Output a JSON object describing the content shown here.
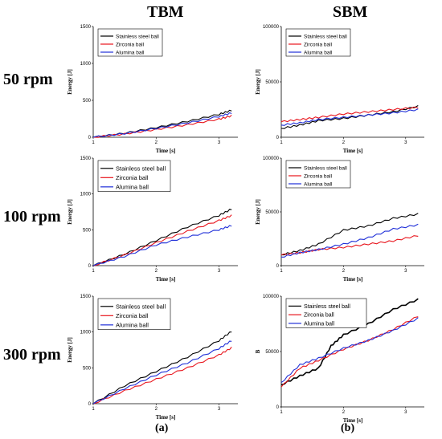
{
  "column_titles": [
    "TBM",
    "SBM"
  ],
  "row_titles": [
    "50 rpm",
    "100 rpm",
    "300 rpm"
  ],
  "captions": [
    "(a)",
    "(b)"
  ],
  "colors": {
    "stainless": "#000000",
    "zirconia": "#e8141c",
    "alumina": "#1f2fd8"
  },
  "chart_data": [
    {
      "type": "line",
      "panel": "TBM 50 rpm",
      "xlabel": "Time [s]",
      "ylabel": "Energy [J]",
      "xlim": [
        1,
        3.3
      ],
      "ylim": [
        0,
        1500
      ],
      "xticks": [
        1,
        2,
        3
      ],
      "yticks": [
        0,
        500,
        1000,
        1500
      ],
      "legend": "top-left",
      "series": [
        {
          "name": "Stainless steel ball",
          "x": [
            1,
            1.5,
            2,
            2.5,
            3,
            3.2
          ],
          "y": [
            0,
            55,
            130,
            215,
            310,
            365
          ]
        },
        {
          "name": "Zirconia ball",
          "x": [
            1,
            1.5,
            2,
            2.5,
            3,
            3.2
          ],
          "y": [
            0,
            45,
            105,
            170,
            245,
            290
          ]
        },
        {
          "name": "Alumina ball",
          "x": [
            1,
            1.5,
            2,
            2.5,
            3,
            3.2
          ],
          "y": [
            0,
            50,
            120,
            195,
            280,
            330
          ]
        }
      ]
    },
    {
      "type": "line",
      "panel": "SBM 50 rpm",
      "xlabel": "Time [s]",
      "ylabel": "Energy [J]",
      "xlim": [
        1,
        3.3
      ],
      "ylim": [
        0,
        100000
      ],
      "xticks": [
        1,
        2,
        3
      ],
      "yticks": [
        0,
        50000,
        100000
      ],
      "legend": "top-left",
      "series": [
        {
          "name": "Stainless steel ball",
          "x": [
            1,
            1.3,
            1.6,
            2,
            2.4,
            2.8,
            3.2
          ],
          "y": [
            8000,
            11000,
            15000,
            17000,
            20000,
            23000,
            28000
          ]
        },
        {
          "name": "Zirconia ball",
          "x": [
            1,
            1.3,
            1.6,
            2,
            2.4,
            2.8,
            3.2
          ],
          "y": [
            14000,
            16000,
            18000,
            21000,
            23000,
            25000,
            27000
          ]
        },
        {
          "name": "Alumina ball",
          "x": [
            1,
            1.3,
            1.6,
            2,
            2.4,
            2.8,
            3.2
          ],
          "y": [
            11000,
            13000,
            16000,
            18000,
            20000,
            22000,
            25000
          ]
        }
      ]
    },
    {
      "type": "line",
      "panel": "TBM 100 rpm",
      "xlabel": "Time [s]",
      "ylabel": "Energy [J]",
      "xlim": [
        1,
        3.3
      ],
      "ylim": [
        0,
        1500
      ],
      "xticks": [
        1,
        2,
        3
      ],
      "yticks": [
        0,
        500,
        1000,
        1500
      ],
      "legend": "top-left",
      "series": [
        {
          "name": "Stainless steel ball",
          "x": [
            1,
            1.5,
            2,
            2.5,
            3,
            3.2
          ],
          "y": [
            0,
            160,
            350,
            540,
            700,
            790
          ]
        },
        {
          "name": "Zirconia ball",
          "x": [
            1,
            1.5,
            2,
            2.5,
            3,
            3.2
          ],
          "y": [
            0,
            150,
            320,
            480,
            630,
            700
          ]
        },
        {
          "name": "Alumina ball",
          "x": [
            1,
            1.5,
            2,
            2.5,
            3,
            3.2
          ],
          "y": [
            0,
            130,
            290,
            400,
            500,
            560
          ]
        }
      ]
    },
    {
      "type": "line",
      "panel": "SBM 100 rpm",
      "xlabel": "Time [s]",
      "ylabel": "Energy [J]",
      "xlim": [
        1,
        3.3
      ],
      "ylim": [
        0,
        100000
      ],
      "xticks": [
        1,
        2,
        3
      ],
      "yticks": [
        0,
        50000,
        100000
      ],
      "legend": "top-left",
      "series": [
        {
          "name": "Stainless steel ball",
          "x": [
            1,
            1.3,
            1.6,
            2,
            2.4,
            2.8,
            3.2
          ],
          "y": [
            10000,
            14000,
            20000,
            33000,
            37000,
            44000,
            48000
          ]
        },
        {
          "name": "Zirconia ball",
          "x": [
            1,
            1.3,
            1.6,
            2,
            2.4,
            2.8,
            3.2
          ],
          "y": [
            10000,
            12000,
            15000,
            17000,
            20000,
            23000,
            28000
          ]
        },
        {
          "name": "Alumina ball",
          "x": [
            1,
            1.3,
            1.6,
            2,
            2.4,
            2.8,
            3.2
          ],
          "y": [
            8000,
            12000,
            15000,
            20000,
            26000,
            34000,
            38000
          ]
        }
      ]
    },
    {
      "type": "line",
      "panel": "TBM 300 rpm",
      "xlabel": "Time [s]",
      "ylabel": "Energy [J]",
      "xlim": [
        1,
        3.3
      ],
      "ylim": [
        0,
        1500
      ],
      "xticks": [
        1,
        2,
        3
      ],
      "yticks": [
        0,
        500,
        1000,
        1500
      ],
      "legend": "top-left",
      "series": [
        {
          "name": "Stainless steel ball",
          "x": [
            1,
            1.5,
            2,
            2.5,
            3,
            3.2
          ],
          "y": [
            0,
            250,
            450,
            650,
            880,
            1010
          ]
        },
        {
          "name": "Zirconia ball",
          "x": [
            1,
            1.5,
            2,
            2.5,
            3,
            3.2
          ],
          "y": [
            0,
            180,
            340,
            500,
            680,
            780
          ]
        },
        {
          "name": "Alumina ball",
          "x": [
            1,
            1.5,
            2,
            2.5,
            3,
            3.2
          ],
          "y": [
            0,
            210,
            400,
            570,
            770,
            880
          ]
        }
      ]
    },
    {
      "type": "line",
      "panel": "SBM 300 rpm",
      "xlabel": "Time [s]",
      "ylabel": "B",
      "xlim": [
        1,
        3.3
      ],
      "ylim": [
        0,
        100000
      ],
      "xticks": [
        1,
        2,
        3
      ],
      "yticks": [
        0,
        50000,
        100000
      ],
      "legend": "top-left",
      "series": [
        {
          "name": "Stainless steel ball",
          "x": [
            1,
            1.3,
            1.6,
            1.8,
            2,
            2.4,
            2.8,
            3.2
          ],
          "y": [
            20000,
            28000,
            35000,
            55000,
            65000,
            75000,
            88000,
            97000
          ]
        },
        {
          "name": "Zirconia ball",
          "x": [
            1,
            1.3,
            1.6,
            2,
            2.4,
            2.8,
            3.2
          ],
          "y": [
            18000,
            35000,
            42000,
            52000,
            60000,
            70000,
            82000
          ]
        },
        {
          "name": "Alumina ball",
          "x": [
            1,
            1.3,
            1.6,
            2,
            2.4,
            2.8,
            3.2
          ],
          "y": [
            22000,
            38000,
            44000,
            53000,
            60000,
            69000,
            80000
          ]
        }
      ]
    }
  ]
}
